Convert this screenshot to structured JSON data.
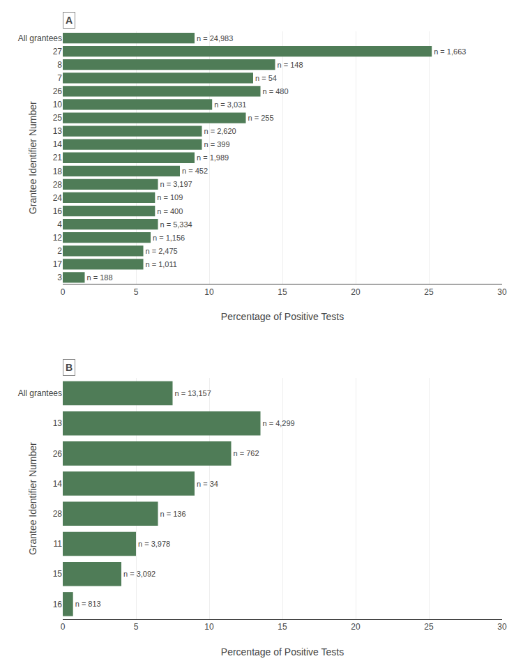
{
  "chart_data": [
    {
      "type": "bar",
      "orientation": "horizontal",
      "title": "A",
      "categories": [
        "All grantees",
        "27",
        "8",
        "7",
        "26",
        "10",
        "25",
        "13",
        "14",
        "21",
        "18",
        "28",
        "24",
        "16",
        "4",
        "12",
        "2",
        "17",
        "3"
      ],
      "values": [
        9.0,
        25.2,
        14.5,
        13.0,
        13.5,
        10.2,
        12.5,
        9.5,
        9.5,
        9.0,
        8.0,
        6.5,
        6.3,
        6.3,
        6.5,
        6.0,
        5.5,
        5.5,
        1.5
      ],
      "annotations": [
        "n = 24,983",
        "n = 1,663",
        "n = 148",
        "n = 54",
        "n = 480",
        "n = 3,031",
        "n = 255",
        "n = 2,620",
        "n = 399",
        "n = 1,989",
        "n = 452",
        "n = 3,197",
        "n = 109",
        "n = 400",
        "n = 5,334",
        "n = 1,156",
        "n = 2,475",
        "n = 1,011",
        "n = 188"
      ],
      "xlabel": "Percentage of Positive Tests",
      "ylabel": "Grantee Identifier Number",
      "xlim": [
        0,
        30
      ],
      "xticks": [
        0,
        5,
        10,
        15,
        20,
        25,
        30
      ],
      "grid": true,
      "color": "#4f7c57"
    },
    {
      "type": "bar",
      "orientation": "horizontal",
      "title": "B",
      "categories": [
        "All grantees",
        "13",
        "26",
        "14",
        "28",
        "11",
        "15",
        "16"
      ],
      "values": [
        7.5,
        13.5,
        11.5,
        9.0,
        6.5,
        5.0,
        4.0,
        0.7
      ],
      "annotations": [
        "n = 13,157",
        "n = 4,299",
        "n = 762",
        "n = 34",
        "n = 136",
        "n = 3,978",
        "n = 3,092",
        "n = 813"
      ],
      "xlabel": "Percentage of Positive Tests",
      "ylabel": "Grantee Identifier Number",
      "xlim": [
        0,
        30
      ],
      "xticks": [
        0,
        5,
        10,
        15,
        20,
        25,
        30
      ],
      "grid": true,
      "color": "#4f7c57"
    }
  ]
}
